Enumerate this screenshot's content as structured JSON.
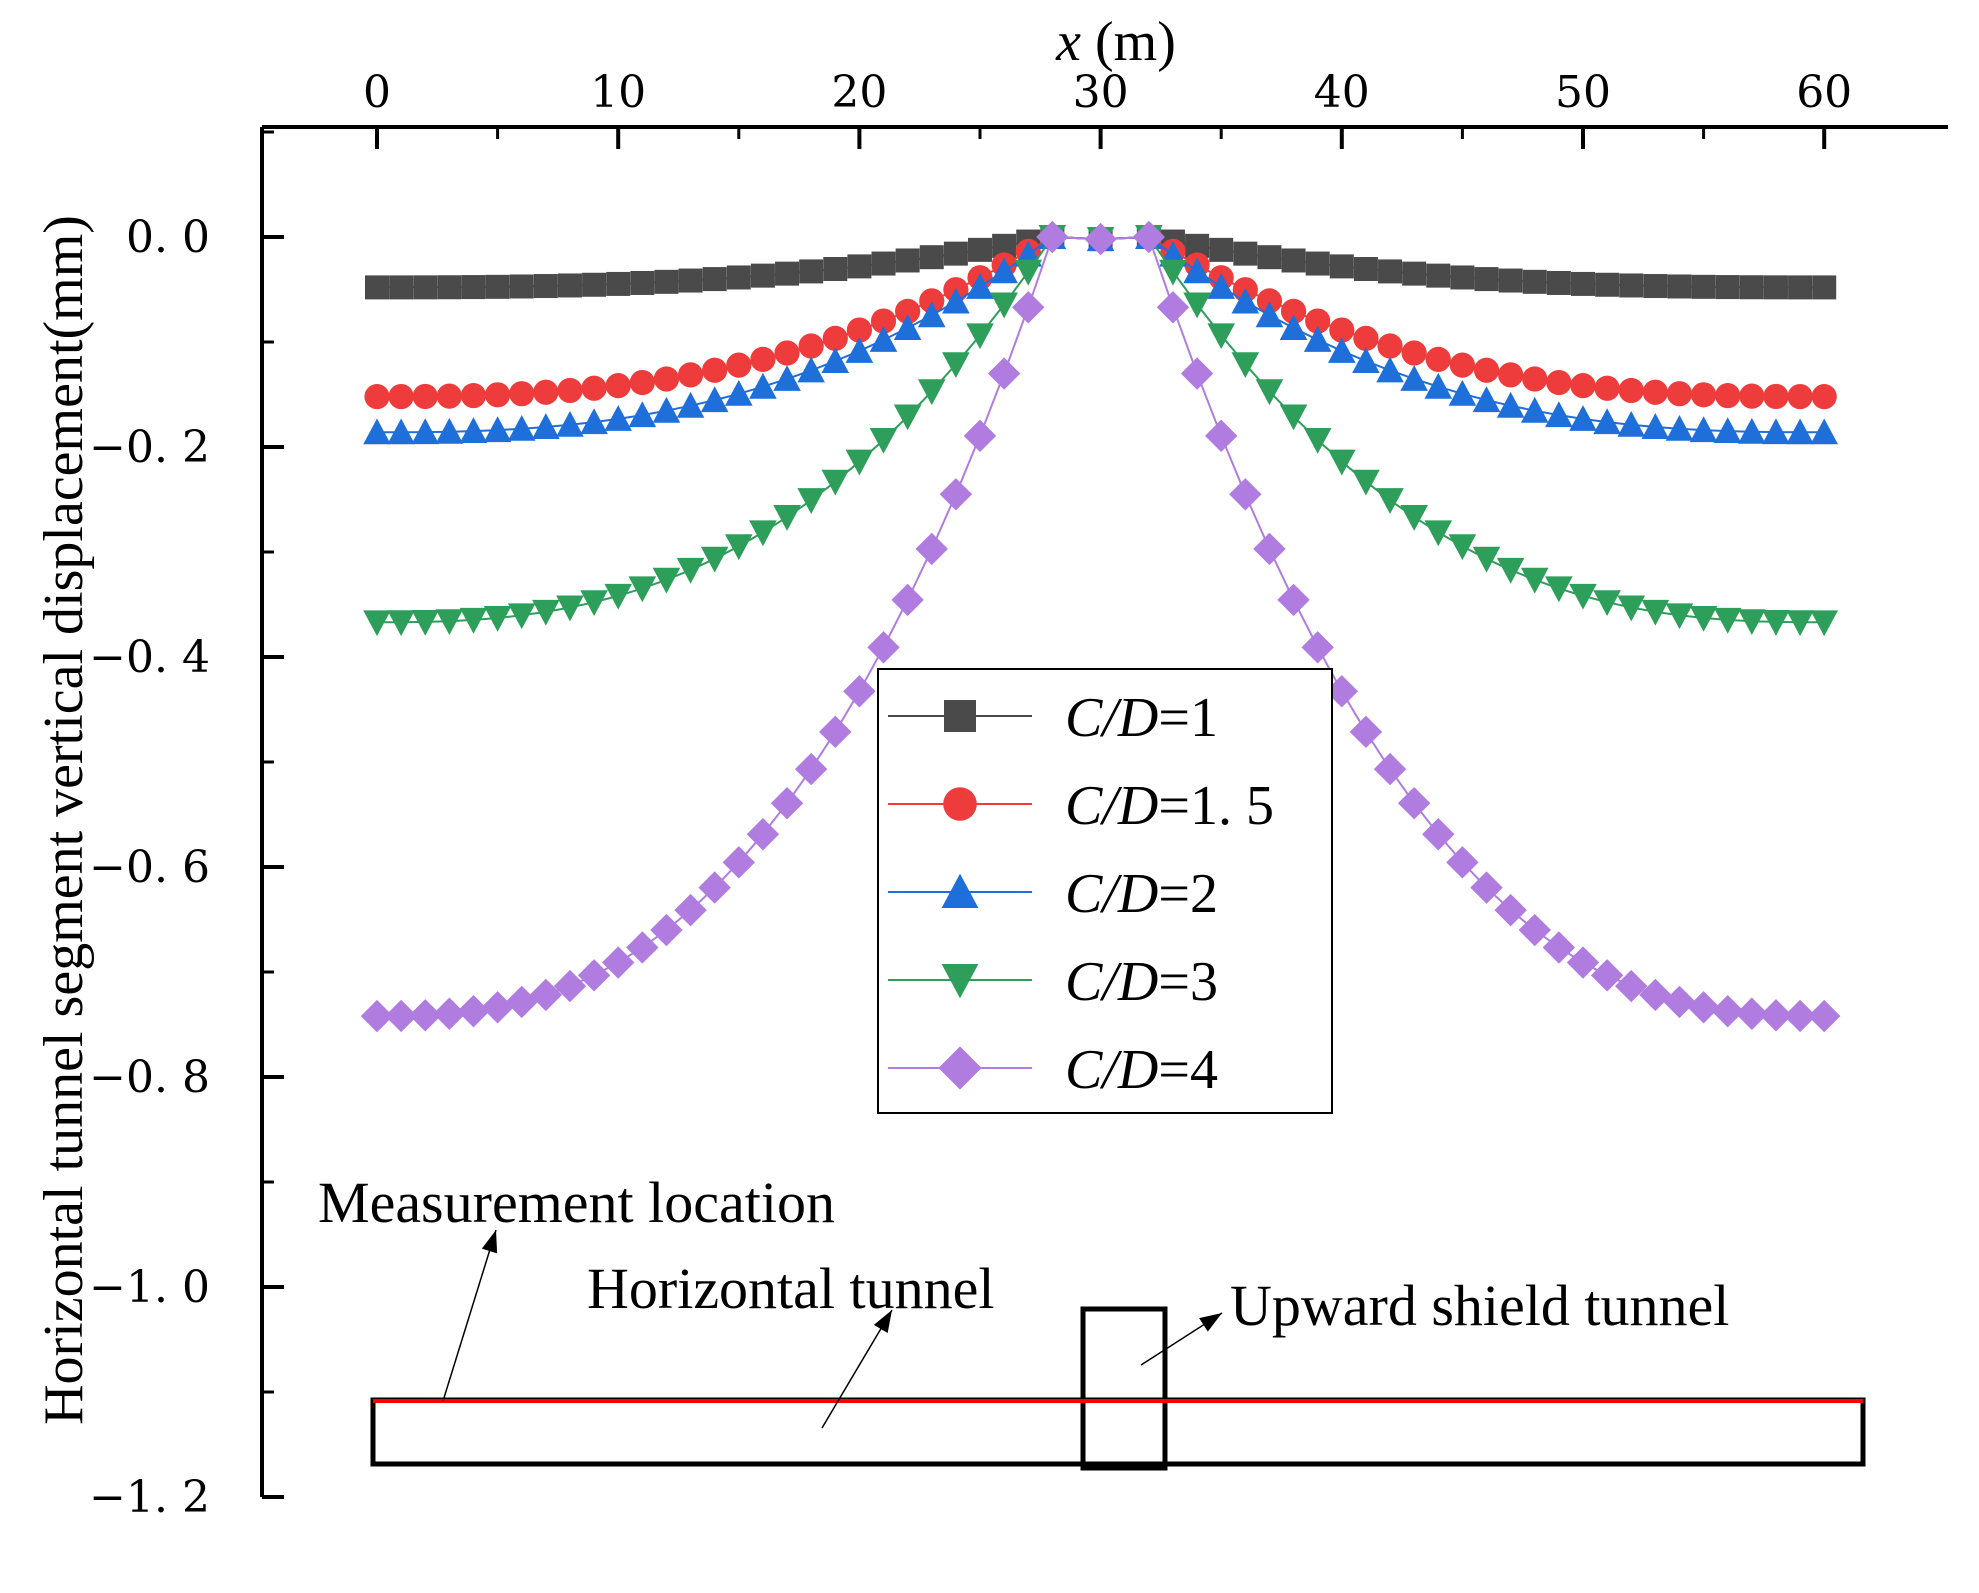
{
  "chart_data": {
    "type": "scatter",
    "xlabel_var": "x",
    "xlabel_unit": " (m)",
    "ylabel": "Horizontal tunnel segment vertical displacement(mm)",
    "xlim": [
      -4.5,
      65
    ],
    "ylim": [
      -1.2,
      0.12
    ],
    "x_ticks": [
      0,
      10,
      20,
      30,
      40,
      50,
      60
    ],
    "x_tick_labels": [
      "0",
      "10",
      "20",
      "30",
      "40",
      "50",
      "60"
    ],
    "y_ticks": [
      0.0,
      -0.2,
      -0.4,
      -0.6,
      -0.8,
      -1.0,
      -1.2
    ],
    "y_tick_labels": [
      "0. 0",
      "−0. 2",
      "−0. 4",
      "−0. 6",
      "−0. 8",
      "−1. 0",
      "−1. 2"
    ],
    "grid": false,
    "legend_position": "center",
    "series": [
      {
        "name_italic": "C/D",
        "name_value": "=1",
        "marker": "square",
        "color": "#4a4a4a",
        "edge": 0.048,
        "step": 1
      },
      {
        "name_italic": "C/D",
        "name_value": "=1. 5",
        "marker": "circle",
        "color": "#ee3b3b",
        "edge": 0.152,
        "step": 1
      },
      {
        "name_italic": "C/D",
        "name_value": "=2",
        "marker": "triangle-up",
        "color": "#1f6fdb",
        "edge": 0.186,
        "step": 1
      },
      {
        "name_italic": "C/D",
        "name_value": "=3",
        "marker": "triangle-down",
        "color": "#2e9e5b",
        "edge": 0.367,
        "step": 1
      },
      {
        "name_italic": "C/D",
        "name_value": "=4",
        "marker": "diamond",
        "color": "#b07ce0",
        "edge": 0.742,
        "step": 1
      }
    ],
    "profile": {
      "left_x": [
        0,
        28
      ],
      "right_x": [
        32,
        60
      ],
      "shape_power": 2.6,
      "inner_y": -0.002
    },
    "schematic": {
      "measurement_label": "Measurement location",
      "horizontal_label": "Horizontal tunnel",
      "upward_label": "Upward shield tunnel",
      "measurement_line_color": "#ff0000"
    }
  }
}
